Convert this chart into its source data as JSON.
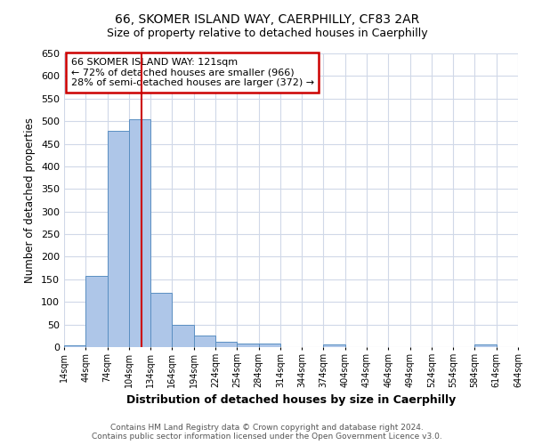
{
  "title": "66, SKOMER ISLAND WAY, CAERPHILLY, CF83 2AR",
  "subtitle": "Size of property relative to detached houses in Caerphilly",
  "xlabel": "Distribution of detached houses by size in Caerphilly",
  "ylabel": "Number of detached properties",
  "annotation_line1": "66 SKOMER ISLAND WAY: 121sqm",
  "annotation_line2": "← 72% of detached houses are smaller (966)",
  "annotation_line3": "28% of semi-detached houses are larger (372) →",
  "property_size": 121,
  "bin_edges": [
    14,
    44,
    74,
    104,
    134,
    164,
    194,
    224,
    254,
    284,
    314,
    344,
    374,
    404,
    434,
    464,
    494,
    524,
    554,
    584,
    614,
    644
  ],
  "bar_heights": [
    3,
    158,
    478,
    505,
    120,
    50,
    25,
    12,
    8,
    7,
    0,
    0,
    5,
    0,
    0,
    0,
    0,
    0,
    0,
    5,
    0
  ],
  "bar_color": "#aec6e8",
  "bar_edge_color": "#5a8fc2",
  "vline_x": 121,
  "vline_color": "#cc0000",
  "ylim": [
    0,
    650
  ],
  "yticks": [
    0,
    50,
    100,
    150,
    200,
    250,
    300,
    350,
    400,
    450,
    500,
    550,
    600,
    650
  ],
  "background_color": "#ffffff",
  "grid_color": "#d0d8e8",
  "annotation_box_color": "#cc0000",
  "footer_line1": "Contains HM Land Registry data © Crown copyright and database right 2024.",
  "footer_line2": "Contains public sector information licensed under the Open Government Licence v3.0."
}
